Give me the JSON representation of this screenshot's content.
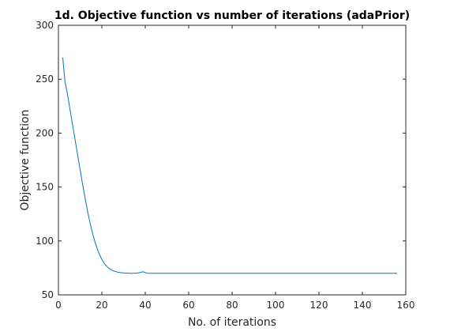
{
  "chart_data": {
    "type": "line",
    "title": "1d. Objective function vs number of iterations (adaPrior)",
    "xlabel": "No. of iterations",
    "ylabel": "Objective function",
    "xlim": [
      0,
      160
    ],
    "ylim": [
      50,
      300
    ],
    "xticks": [
      0,
      20,
      40,
      60,
      80,
      100,
      120,
      140,
      160
    ],
    "yticks": [
      50,
      100,
      150,
      200,
      250,
      300
    ],
    "grid": false,
    "line_color": "#0072BD",
    "series": [
      {
        "x": [
          2,
          3,
          4,
          5,
          6,
          7,
          8,
          9,
          10,
          11,
          12,
          13,
          14,
          15,
          16,
          17,
          18,
          19,
          20,
          21,
          22,
          23,
          24,
          25,
          26,
          27,
          28,
          29,
          30,
          31,
          32,
          33,
          34,
          35,
          36,
          37,
          38,
          39,
          40,
          41,
          42,
          43,
          45,
          50,
          60,
          70,
          80,
          90,
          100,
          110,
          120,
          130,
          140,
          150,
          156
        ],
        "y": [
          270,
          248,
          238,
          226,
          214,
          202,
          190,
          178,
          166,
          154,
          143,
          132,
          122,
          113,
          105,
          98,
          92,
          87,
          83,
          79.5,
          77,
          75,
          73.5,
          72.5,
          71.8,
          71.2,
          70.8,
          70.5,
          70.3,
          70.2,
          70.1,
          70.0,
          70.0,
          70.1,
          70.2,
          70.4,
          71.0,
          71.4,
          70.6,
          70.1,
          70.0,
          70.0,
          70.0,
          70.0,
          70.0,
          70.0,
          70.0,
          70.0,
          70.0,
          70.0,
          70.0,
          70.0,
          70.0,
          70.0,
          70.0
        ]
      }
    ]
  }
}
